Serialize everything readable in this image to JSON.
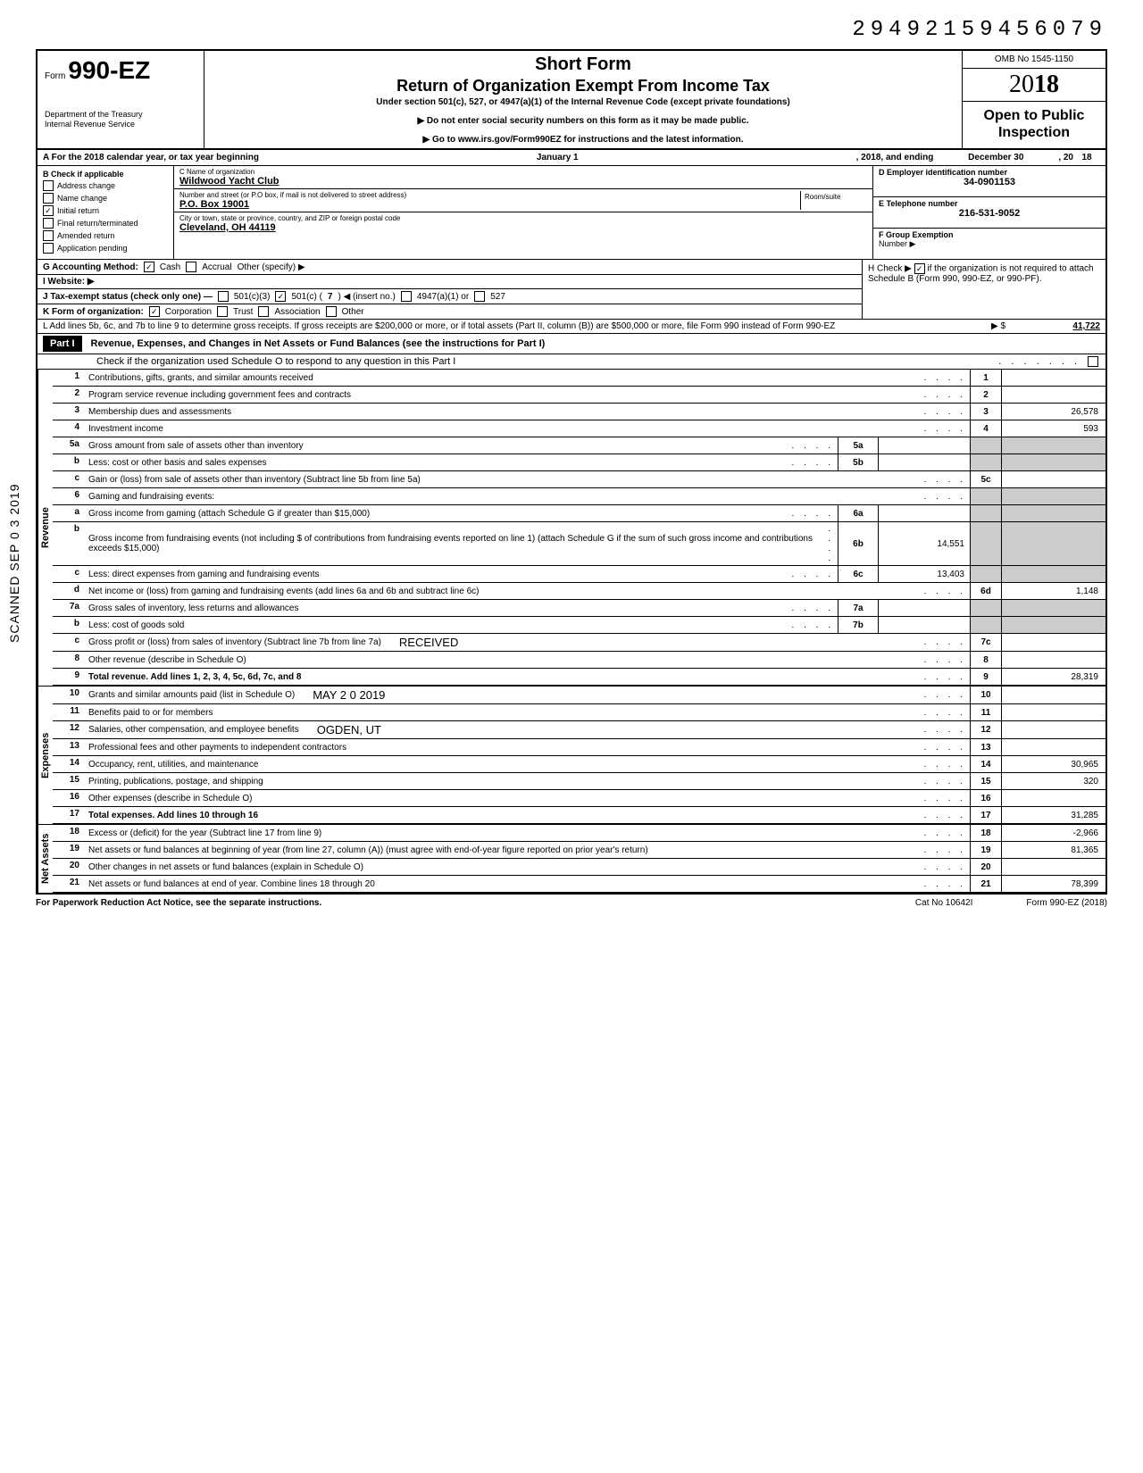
{
  "top_id": "29492159456079",
  "form": {
    "number": "990-EZ",
    "form_word": "Form",
    "short": "Short Form",
    "title": "Return of Organization Exempt From Income Tax",
    "subtitle": "Under section 501(c), 527, or 4947(a)(1) of the Internal Revenue Code (except private foundations)",
    "instruct1": "▶ Do not enter social security numbers on this form as it may be made public.",
    "instruct2": "▶ Go to www.irs.gov/Form990EZ for instructions and the latest information.",
    "dept1": "Department of the Treasury",
    "dept2": "Internal Revenue Service",
    "omb": "OMB No  1545-1150",
    "year_prefix": "20",
    "year_bold": "18",
    "open": "Open to Public Inspection"
  },
  "rowA": {
    "prefix": "A  For the 2018 calendar year, or tax year beginning",
    "mid": "January 1",
    "mid2": ", 2018, and ending",
    "end1": "December 30",
    "end2": ", 20",
    "end3": "18"
  },
  "colB": {
    "header": "B  Check if applicable",
    "items": [
      "Address change",
      "Name change",
      "Initial return",
      "Final return/terminated",
      "Amended return",
      "Application pending"
    ],
    "checked_index": 2
  },
  "colC": {
    "name_label": "C  Name of organization",
    "name": "Wildwood Yacht Club",
    "addr_label": "Number and street (or P.O  box, if mail is not delivered to street address)",
    "room_label": "Room/suite",
    "addr": "P.O. Box 19001",
    "city_label": "City or town, state or province, country, and ZIP or foreign postal code",
    "city": "Cleveland,  OH  44119"
  },
  "colD": {
    "ein_label": "D Employer identification number",
    "ein": "34-0901153",
    "tel_label": "E Telephone number",
    "tel": "216-531-9052",
    "grp_label": "F Group Exemption",
    "grp2": "Number ▶"
  },
  "rowG": {
    "label": "G  Accounting Method:",
    "opts": [
      "Cash",
      "Accrual",
      "Other (specify) ▶"
    ],
    "checked": 0
  },
  "rowH": {
    "text1": "H  Check ▶",
    "text2": "if the organization is not required to attach Schedule B (Form 990, 990-EZ, or 990-PF).",
    "checked": true
  },
  "rowI": {
    "label": "I   Website: ▶"
  },
  "rowJ": {
    "label": "J  Tax-exempt status (check only one) —",
    "o1": "501(c)(3)",
    "o2": "501(c) (",
    "o2n": "7",
    "o2b": ") ◀ (insert no.)",
    "o3": "4947(a)(1) or",
    "o4": "527",
    "checked": 1
  },
  "rowK": {
    "label": "K  Form of organization:",
    "opts": [
      "Corporation",
      "Trust",
      "Association",
      "Other"
    ],
    "checked": 0
  },
  "rowL": {
    "text": "L  Add lines 5b, 6c, and 7b to line 9 to determine gross receipts. If gross receipts are $200,000 or more, or if total assets (Part II, column (B)) are $500,000 or more, file Form 990 instead of Form 990-EZ",
    "marker": "▶   $",
    "val": "41,722"
  },
  "part1": {
    "label": "Part I",
    "title": "Revenue, Expenses, and Changes in Net Assets or Fund Balances (see the instructions for Part I)",
    "sub": "Check if the organization used Schedule O to respond to any question in this Part I"
  },
  "sections": {
    "revenue": "Revenue",
    "expenses": "Expenses",
    "netassets": "Net Assets"
  },
  "lines": [
    {
      "n": "1",
      "d": "Contributions, gifts, grants, and similar amounts received",
      "rn": "1",
      "rv": ""
    },
    {
      "n": "2",
      "d": "Program service revenue including government fees and contracts",
      "rn": "2",
      "rv": ""
    },
    {
      "n": "3",
      "d": "Membership dues and assessments",
      "rn": "3",
      "rv": "26,578"
    },
    {
      "n": "4",
      "d": "Investment income",
      "rn": "4",
      "rv": "593"
    },
    {
      "n": "5a",
      "d": "Gross amount from sale of assets other than inventory",
      "mb": "5a",
      "mv": ""
    },
    {
      "n": "b",
      "d": "Less: cost or other basis and sales expenses",
      "mb": "5b",
      "mv": ""
    },
    {
      "n": "c",
      "d": "Gain or (loss) from sale of assets other than inventory (Subtract line 5b from line 5a)",
      "rn": "5c",
      "rv": ""
    },
    {
      "n": "6",
      "d": "Gaming and fundraising events:"
    },
    {
      "n": "a",
      "d": "Gross income from gaming (attach Schedule G if greater than $15,000)",
      "mb": "6a",
      "mv": ""
    },
    {
      "n": "b",
      "d": "Gross income from fundraising events (not including  $                    of contributions from fundraising events reported on line 1) (attach Schedule G if the sum of such gross income and contributions exceeds $15,000)",
      "mb": "6b",
      "mv": "14,551"
    },
    {
      "n": "c",
      "d": "Less: direct expenses from gaming and fundraising events",
      "mb": "6c",
      "mv": "13,403"
    },
    {
      "n": "d",
      "d": "Net income or (loss) from gaming and fundraising events (add lines 6a and 6b and subtract line 6c)",
      "rn": "6d",
      "rv": "1,148"
    },
    {
      "n": "7a",
      "d": "Gross sales of inventory, less returns and allowances",
      "mb": "7a",
      "mv": ""
    },
    {
      "n": "b",
      "d": "Less: cost of goods sold",
      "mb": "7b",
      "mv": ""
    },
    {
      "n": "c",
      "d": "Gross profit or (loss) from sales of inventory (Subtract line 7b from line 7a)",
      "rn": "7c",
      "rv": "",
      "stamp": "RECEIVED"
    },
    {
      "n": "8",
      "d": "Other revenue (describe in Schedule O)",
      "rn": "8",
      "rv": ""
    },
    {
      "n": "9",
      "d": "Total revenue. Add lines 1, 2, 3, 4, 5c, 6d, 7c, and 8",
      "rn": "9",
      "rv": "28,319",
      "bold": true
    }
  ],
  "exp_lines": [
    {
      "n": "10",
      "d": "Grants and similar amounts paid (list in Schedule O)",
      "rn": "10",
      "rv": "",
      "stamp": "MAY 2 0 2019"
    },
    {
      "n": "11",
      "d": "Benefits paid to or for members",
      "rn": "11",
      "rv": ""
    },
    {
      "n": "12",
      "d": "Salaries, other compensation, and employee benefits",
      "rn": "12",
      "rv": "",
      "stamp": "OGDEN, UT"
    },
    {
      "n": "13",
      "d": "Professional fees and other payments to independent contractors",
      "rn": "13",
      "rv": ""
    },
    {
      "n": "14",
      "d": "Occupancy, rent, utilities, and maintenance",
      "rn": "14",
      "rv": "30,965"
    },
    {
      "n": "15",
      "d": "Printing, publications, postage, and shipping",
      "rn": "15",
      "rv": "320"
    },
    {
      "n": "16",
      "d": "Other expenses (describe in Schedule O)",
      "rn": "16",
      "rv": ""
    },
    {
      "n": "17",
      "d": "Total expenses. Add lines 10 through 16",
      "rn": "17",
      "rv": "31,285",
      "bold": true
    }
  ],
  "na_lines": [
    {
      "n": "18",
      "d": "Excess or (deficit) for the year (Subtract line 17 from line 9)",
      "rn": "18",
      "rv": "-2,966"
    },
    {
      "n": "19",
      "d": "Net assets or fund balances at beginning of year (from line 27, column (A)) (must agree with end-of-year figure reported on prior year's return)",
      "rn": "19",
      "rv": "81,365"
    },
    {
      "n": "20",
      "d": "Other changes in net assets or fund balances (explain in Schedule O)",
      "rn": "20",
      "rv": ""
    },
    {
      "n": "21",
      "d": "Net assets or fund balances at end of year. Combine lines 18 through 20",
      "rn": "21",
      "rv": "78,399"
    }
  ],
  "footer": {
    "left": "For Paperwork Reduction Act Notice, see the separate instructions.",
    "mid": "Cat  No  10642I",
    "right": "Form 990-EZ  (2018)"
  },
  "scanned": "SCANNED  SEP 0 3 2019",
  "colors": {
    "text": "#000000",
    "bg": "#ffffff",
    "shade": "#cccccc"
  }
}
